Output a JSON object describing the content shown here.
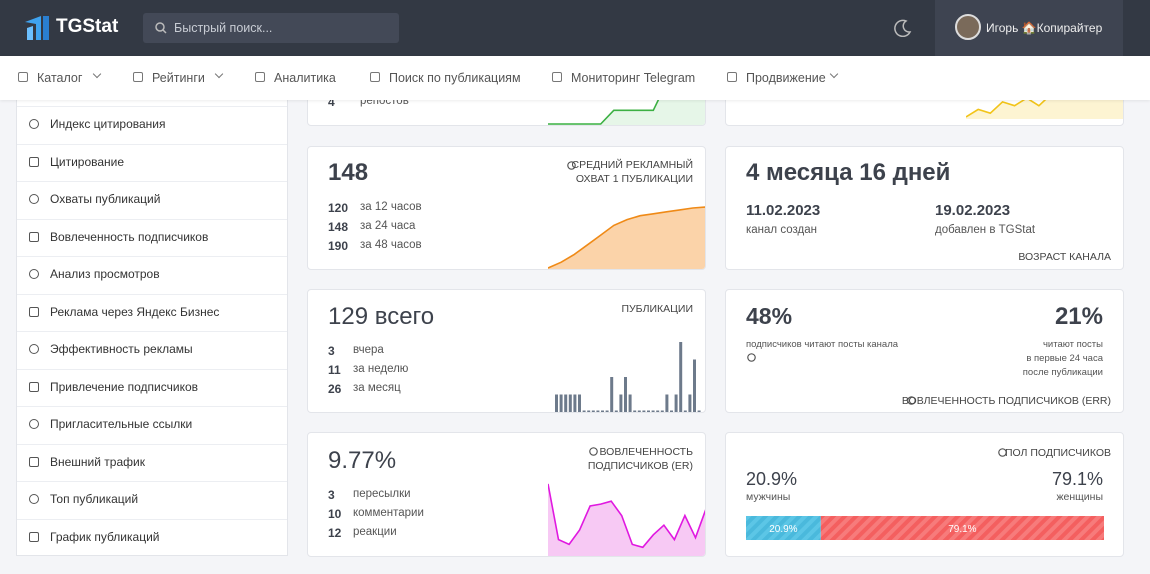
{
  "header": {
    "logo": "TGStat",
    "search_placeholder": "Быстрый поиск...",
    "user": "Игорь 🏠Копирайтер"
  },
  "nav": [
    "Каталог",
    "Рейтинги",
    "Аналитика",
    "Поиск по публикациям",
    "Мониторинг Telegram",
    "Продвижение"
  ],
  "sidebar": [
    "Индекс цитирования",
    "Цитирование",
    "Охваты публикаций",
    "Вовлеченность подписчиков",
    "Анализ просмотров",
    "Реклама через Яндекс Бизнес",
    "Эффективность рекламы",
    "Привлечение подписчиков",
    "Пригласительные ссылки",
    "Внешний трафик",
    "Топ публикаций",
    "График публикаций"
  ],
  "cards": {
    "reposts": {
      "value": "4",
      "label": "репостов",
      "chart": [
        0,
        0,
        0,
        0,
        0,
        1,
        1,
        1,
        1,
        3,
        3,
        3,
        3
      ]
    },
    "top_right": {
      "chart": [
        0,
        2,
        1,
        4,
        3,
        5,
        3,
        6,
        5,
        7,
        6,
        8,
        7,
        9
      ]
    },
    "reach": {
      "value": "148",
      "title": [
        "СРЕДНИЙ РЕКЛАМНЫЙ",
        "ОХВАТ 1 ПУБЛИКАЦИИ"
      ],
      "rows": [
        {
          "value": "120",
          "label": "за 12 часов"
        },
        {
          "value": "148",
          "label": "за 24 часа"
        },
        {
          "value": "190",
          "label": "за 48 часов"
        }
      ],
      "chart": [
        0,
        6,
        14,
        24,
        34,
        44,
        50,
        54,
        56,
        58,
        60,
        62,
        63
      ]
    },
    "age": {
      "value": "4 месяца 16 дней",
      "created_date": "11.02.2023",
      "created_label": "канал создан",
      "added_date": "19.02.2023",
      "added_label": "добавлен в TGStat",
      "title": "ВОЗРАСТ КАНАЛА"
    },
    "posts": {
      "value": "129 всего",
      "title": "ПУБЛИКАЦИИ",
      "rows": [
        {
          "value": "3",
          "label": "вчера"
        },
        {
          "value": "11",
          "label": "за неделю"
        },
        {
          "value": "26",
          "label": "за месяц"
        }
      ],
      "chart": [
        1,
        1,
        1,
        1,
        1,
        1,
        0,
        0,
        0,
        0,
        0,
        0,
        2,
        0,
        1,
        2,
        1,
        0,
        0,
        0,
        0,
        0,
        0,
        0,
        1,
        0,
        1,
        4,
        0,
        1,
        3,
        0
      ]
    },
    "err": {
      "left_value": "48%",
      "left_label": "подписчиков читают посты канала",
      "right_value": "21%",
      "right_label": [
        "читают посты",
        "в первые 24 часа",
        "после публикации"
      ],
      "title": "ВОВЛЕЧЕННОСТЬ ПОДПИСЧИКОВ (ERR)"
    },
    "er": {
      "value": "9.77%",
      "title": [
        "ВОВЛЕЧЕННОСТЬ",
        "ПОДПИСЧИКОВ (ER)"
      ],
      "rows": [
        {
          "value": "3",
          "label": "пересылки"
        },
        {
          "value": "10",
          "label": "комментарии"
        },
        {
          "value": "12",
          "label": "реакции"
        }
      ],
      "chart": [
        74,
        16,
        11,
        26,
        51,
        53,
        56,
        41,
        11,
        8,
        21,
        31,
        16,
        41,
        18,
        48
      ]
    },
    "gender": {
      "title": "ПОЛ ПОДПИСЧИКОВ",
      "male": {
        "value": 20.9,
        "label": "20.9%",
        "name": "мужчины"
      },
      "female": {
        "value": 79.1,
        "label": "79.1%",
        "name": "женщины"
      }
    }
  }
}
